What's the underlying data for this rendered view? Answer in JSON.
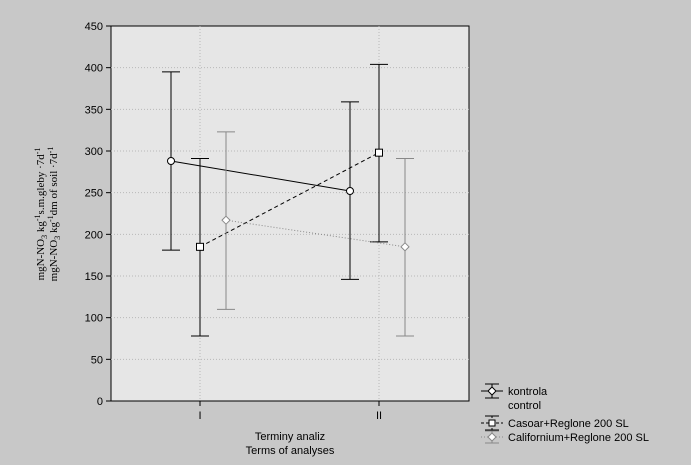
{
  "chart_data": {
    "type": "line",
    "title": "",
    "xlabel_lines": [
      "Terminy analiz",
      "Terms of analyses"
    ],
    "ylabel_lines": [
      {
        "main": "mgN-NO",
        "sub": "3",
        "kg": " kg",
        "sup1": "-1",
        "rest": "s.m.gleby ·7d",
        "sup2": "-1"
      },
      {
        "main": "mgN-NO",
        "sub": "3",
        "kg": " kg",
        "sup1": "-1",
        "rest": "dm of soil ·7d",
        "sup2": "-1"
      }
    ],
    "categories": [
      "I",
      "II"
    ],
    "ylim": [
      0,
      450
    ],
    "yticks": [
      "0",
      "50",
      "100",
      "150",
      "200",
      "250",
      "300",
      "350",
      "400",
      "450"
    ],
    "grid": true,
    "legend_position": "bottom-right outside",
    "series": [
      {
        "name": "kontrola",
        "name_line2": "control",
        "marker": "circle",
        "line_style": "solid",
        "color": "#000000",
        "values": [
          288,
          252
        ],
        "upper": [
          395,
          359
        ],
        "lower": [
          181,
          146
        ]
      },
      {
        "name": "Casoar+Reglone 200 SL",
        "marker": "square",
        "line_style": "dashed",
        "color": "#000000",
        "values": [
          185,
          298
        ],
        "upper": [
          291,
          404
        ],
        "lower": [
          78,
          191
        ]
      },
      {
        "name": "Californium+Reglone 200 SL",
        "marker": "diamond",
        "line_style": "dotted",
        "color": "#888888",
        "values": [
          217,
          185
        ],
        "upper": [
          323,
          291
        ],
        "lower": [
          110,
          78
        ]
      }
    ]
  }
}
